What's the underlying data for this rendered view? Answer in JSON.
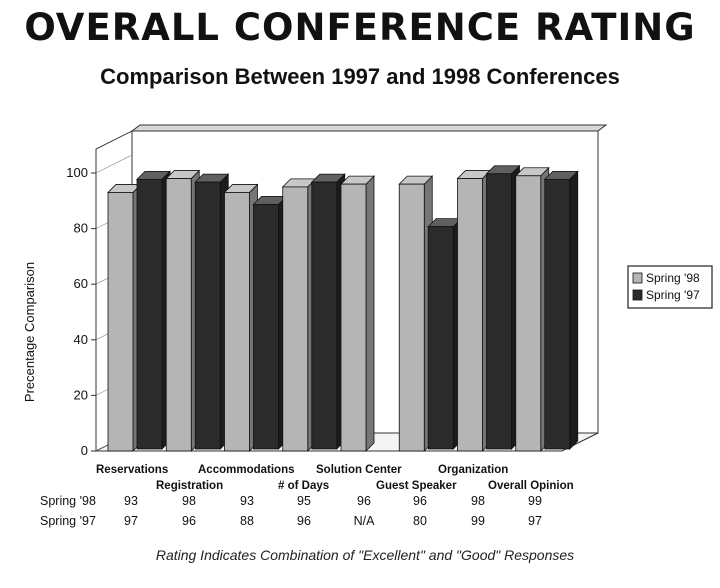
{
  "title": "OVERALL CONFERENCE RATING",
  "subtitle": "Comparison Between 1997 and 1998 Conferences",
  "footnote": "Rating Indicates Combination of \"Excellent\" and \"Good\" Responses",
  "chart_data": {
    "type": "bar",
    "style": "3d-clustered",
    "categories": [
      "Reservations",
      "Registration",
      "Accommodations",
      "# of Days",
      "Solution Center",
      "Guest Speaker",
      "Organization",
      "Overall Opinion"
    ],
    "series": [
      {
        "name": "Spring '98",
        "values": [
          93,
          98,
          93,
          95,
          96,
          96,
          98,
          99
        ],
        "labels": [
          "93",
          "98",
          "93",
          "95",
          "96",
          "96",
          "98",
          "99"
        ],
        "color": "#b5b5b5"
      },
      {
        "name": "Spring '97",
        "values": [
          97,
          96,
          88,
          96,
          null,
          80,
          99,
          97
        ],
        "labels": [
          "97",
          "96",
          "88",
          "96",
          "N/A",
          "80",
          "99",
          "97"
        ],
        "color": "#2b2b2b"
      }
    ],
    "ylabel": "Precentage Comparison",
    "yticks": [
      0,
      20,
      40,
      60,
      80,
      100
    ],
    "ylim": [
      0,
      100
    ],
    "legend_position": "right",
    "grid": false
  }
}
